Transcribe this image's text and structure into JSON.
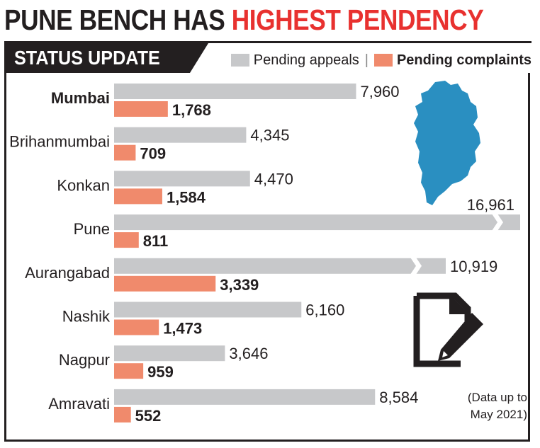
{
  "headline": {
    "part1": "PUNE BENCH HAS ",
    "part2": "HIGHEST PENDENCY"
  },
  "tab_label": "STATUS UPDATE",
  "legend": {
    "appeals_label": "Pending appeals",
    "separator": "|",
    "complaints_label": "Pending complaints"
  },
  "note": {
    "line1": "(Data up to",
    "line2": "May 2021)"
  },
  "colors": {
    "appeals": "#c7c8ca",
    "complaints": "#f08a6c",
    "accent": "#e8312f",
    "ink": "#231f20",
    "map": "#2a8fc1"
  },
  "icons": {
    "map": "maharashtra-map-icon",
    "document": "document-pen-icon"
  },
  "chart_data": {
    "type": "bar",
    "orientation": "horizontal",
    "categories": [
      "Mumbai",
      "Brihanmumbai",
      "Konkan",
      "Pune",
      "Aurangabad",
      "Nashik",
      "Nagpur",
      "Amravati"
    ],
    "category_bold": [
      true,
      false,
      false,
      false,
      false,
      false,
      false,
      false
    ],
    "series": [
      {
        "name": "Pending appeals",
        "values": [
          7960,
          4345,
          4470,
          16961,
          10919,
          6160,
          3646,
          8584
        ],
        "labels": [
          "7,960",
          "4,345",
          "4,470",
          "16,961",
          "10,919",
          "6,160",
          "3,646",
          "8,584"
        ]
      },
      {
        "name": "Pending complaints",
        "values": [
          1768,
          709,
          1584,
          811,
          3339,
          1473,
          959,
          552
        ],
        "labels": [
          "1,768",
          "709",
          "1,584",
          "811",
          "3,339",
          "1,473",
          "959",
          "552"
        ]
      }
    ],
    "broken_axis_categories": [
      "Pune",
      "Aurangabad"
    ],
    "title": "",
    "xlabel": "",
    "ylabel": ""
  }
}
